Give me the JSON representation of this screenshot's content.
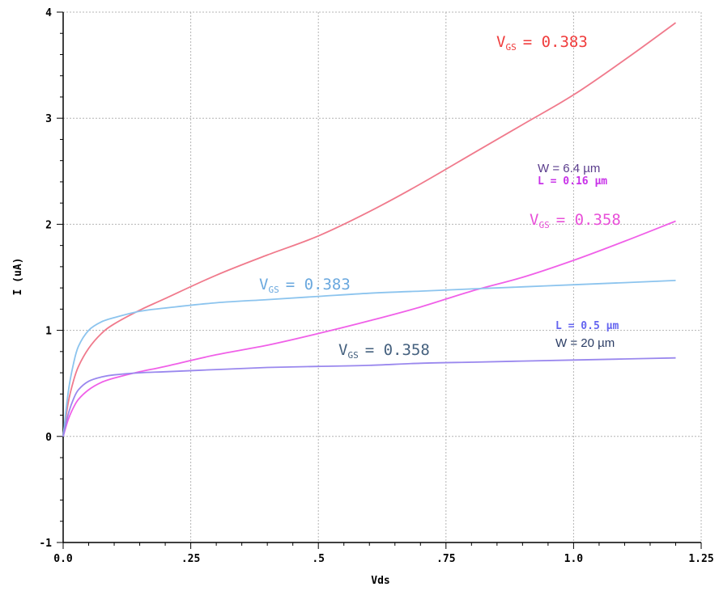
{
  "chart_data": {
    "type": "line",
    "xlabel": "Vds",
    "ylabel": "I (uA)",
    "xlim": [
      0.0,
      1.25
    ],
    "ylim": [
      -1,
      4
    ],
    "x_ticks": [
      "0.0",
      ".25",
      ".5",
      ".75",
      "1.0",
      "1.25"
    ],
    "y_ticks": [
      "-1",
      "0",
      "1",
      "2",
      "3",
      "4"
    ],
    "grid": true,
    "series": [
      {
        "name": "VGS = 0.383 (W = 6.4 µm, L = 0.16 µm)",
        "color": "#f07a8c",
        "x": [
          0.0,
          0.01,
          0.02,
          0.03,
          0.05,
          0.075,
          0.1,
          0.15,
          0.2,
          0.3,
          0.4,
          0.5,
          0.6,
          0.7,
          0.8,
          0.9,
          1.0,
          1.1,
          1.2
        ],
        "values": [
          0.0,
          0.32,
          0.52,
          0.66,
          0.83,
          0.97,
          1.06,
          1.19,
          1.3,
          1.52,
          1.71,
          1.89,
          2.12,
          2.38,
          2.66,
          2.94,
          3.22,
          3.55,
          3.9
        ]
      },
      {
        "name": "VGS = 0.358 (W = 6.4 µm, L = 0.16 µm)",
        "color": "#f060e8",
        "x": [
          0.0,
          0.01,
          0.02,
          0.03,
          0.05,
          0.075,
          0.1,
          0.15,
          0.2,
          0.3,
          0.4,
          0.5,
          0.6,
          0.7,
          0.8,
          0.9,
          1.0,
          1.1,
          1.2
        ],
        "values": [
          0.0,
          0.16,
          0.27,
          0.35,
          0.44,
          0.51,
          0.55,
          0.61,
          0.66,
          0.77,
          0.86,
          0.97,
          1.09,
          1.22,
          1.37,
          1.5,
          1.66,
          1.84,
          2.03
        ]
      },
      {
        "name": "VGS = 0.383 (W = 20 µm, L = 0.5 µm)",
        "color": "#8cc4ee",
        "x": [
          0.0,
          0.01,
          0.02,
          0.03,
          0.05,
          0.075,
          0.1,
          0.15,
          0.2,
          0.3,
          0.4,
          0.5,
          0.6,
          0.7,
          0.8,
          0.9,
          1.0,
          1.1,
          1.2
        ],
        "values": [
          0.0,
          0.42,
          0.68,
          0.85,
          1.0,
          1.08,
          1.12,
          1.18,
          1.21,
          1.26,
          1.29,
          1.32,
          1.35,
          1.37,
          1.39,
          1.41,
          1.43,
          1.45,
          1.47
        ]
      },
      {
        "name": "VGS = 0.358 (W = 20 µm, L = 0.5 µm)",
        "color": "#9a88ee",
        "x": [
          0.0,
          0.01,
          0.02,
          0.03,
          0.05,
          0.075,
          0.1,
          0.15,
          0.2,
          0.3,
          0.4,
          0.5,
          0.6,
          0.7,
          0.8,
          0.9,
          1.0,
          1.1,
          1.2
        ],
        "values": [
          0.0,
          0.21,
          0.35,
          0.44,
          0.52,
          0.56,
          0.58,
          0.6,
          0.61,
          0.63,
          0.65,
          0.66,
          0.67,
          0.69,
          0.7,
          0.71,
          0.72,
          0.73,
          0.74
        ]
      }
    ],
    "annotations": {
      "red_vgs_value": "= 0.383",
      "magenta_vgs_value": "= 0.358",
      "blue_vgs_value": "= 0.383",
      "purple_vgs_value": "= 0.358",
      "vgs_main": "V",
      "vgs_sub": "GS",
      "short_w": "W = 6.4 µm",
      "short_l": "L = 0.16 µm",
      "long_l": "L = 0.5 µm",
      "long_w": "W = 20 µm"
    },
    "colors": {
      "grid": "#b4b4b4",
      "axis": "#000000",
      "red_label": "#f03c3c",
      "magenta_label": "#e850d8",
      "blue_label": "#6aa8de",
      "purple_label": "#44607e",
      "short_w": "#5a3c8c",
      "short_l": "#c832e8",
      "long_l": "#6464f0",
      "long_w": "#2a3c64"
    }
  }
}
